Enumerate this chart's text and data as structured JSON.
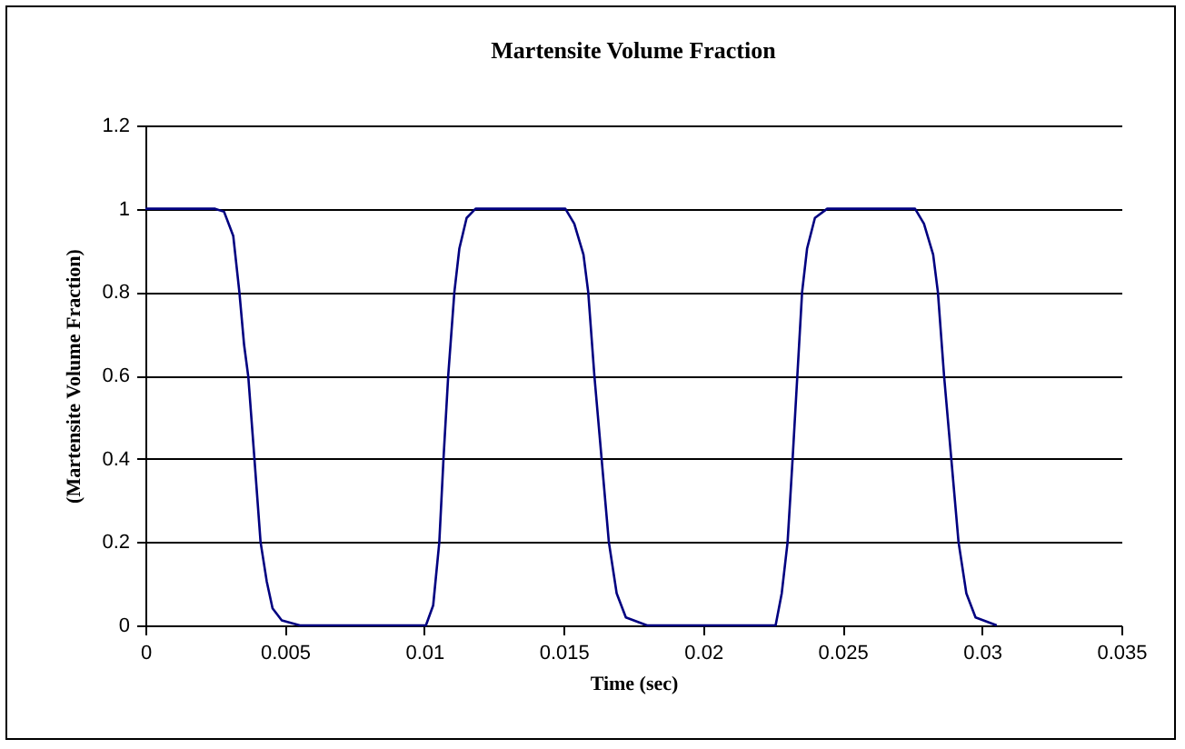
{
  "chart_data": {
    "type": "line",
    "title": "Martensite Volume Fraction",
    "xlabel": "Time (sec)",
    "ylabel": "(Martensite Volume Fraction)",
    "x": [
      0,
      0.0025,
      0.00282,
      0.00315,
      0.00337,
      0.00354,
      0.00369,
      0.00391,
      0.00413,
      0.00435,
      0.00456,
      0.00489,
      0.00554,
      0.01006,
      0.01032,
      0.01054,
      0.01069,
      0.01086,
      0.01108,
      0.01126,
      0.01152,
      0.01184,
      0.01506,
      0.01538,
      0.01571,
      0.01588,
      0.0161,
      0.01636,
      0.01662,
      0.0169,
      0.01723,
      0.01799,
      0.0226,
      0.02282,
      0.02303,
      0.02321,
      0.02338,
      0.02355,
      0.02373,
      0.02401,
      0.02445,
      0.0276,
      0.02792,
      0.02825,
      0.02842,
      0.02864,
      0.0289,
      0.02916,
      0.02944,
      0.02977,
      0.03053
    ],
    "series": [
      {
        "color": "#000080",
        "values": [
          1,
          1,
          0.993,
          0.935,
          0.8,
          0.673,
          0.597,
          0.4,
          0.2,
          0.106,
          0.041,
          0.012,
          0,
          0,
          0.048,
          0.2,
          0.4,
          0.6,
          0.8,
          0.905,
          0.978,
          1,
          1,
          0.964,
          0.89,
          0.8,
          0.6,
          0.4,
          0.2,
          0.077,
          0.019,
          0,
          0,
          0.077,
          0.2,
          0.4,
          0.6,
          0.8,
          0.905,
          0.978,
          1,
          1,
          0.964,
          0.89,
          0.8,
          0.6,
          0.4,
          0.2,
          0.077,
          0.019,
          0
        ]
      }
    ],
    "xlim": [
      0,
      0.035
    ],
    "xticks": [
      {
        "value": 0,
        "label": "0"
      },
      0.005,
      {
        "value": 0.01,
        "label": "0.01"
      },
      0.015,
      {
        "value": 0.02,
        "label": "0.02"
      },
      0.025,
      {
        "value": 0.03,
        "label": "0.03"
      },
      0.035
    ],
    "ylim": [
      0,
      1.2
    ],
    "yticks": [
      {
        "value": 0,
        "label": "0"
      },
      0.2,
      0.4,
      0.6,
      0.8,
      {
        "value": 1,
        "label": "1"
      },
      1.2
    ],
    "grid": "y",
    "legend": false,
    "marker": "none",
    "line_style": "solid"
  }
}
